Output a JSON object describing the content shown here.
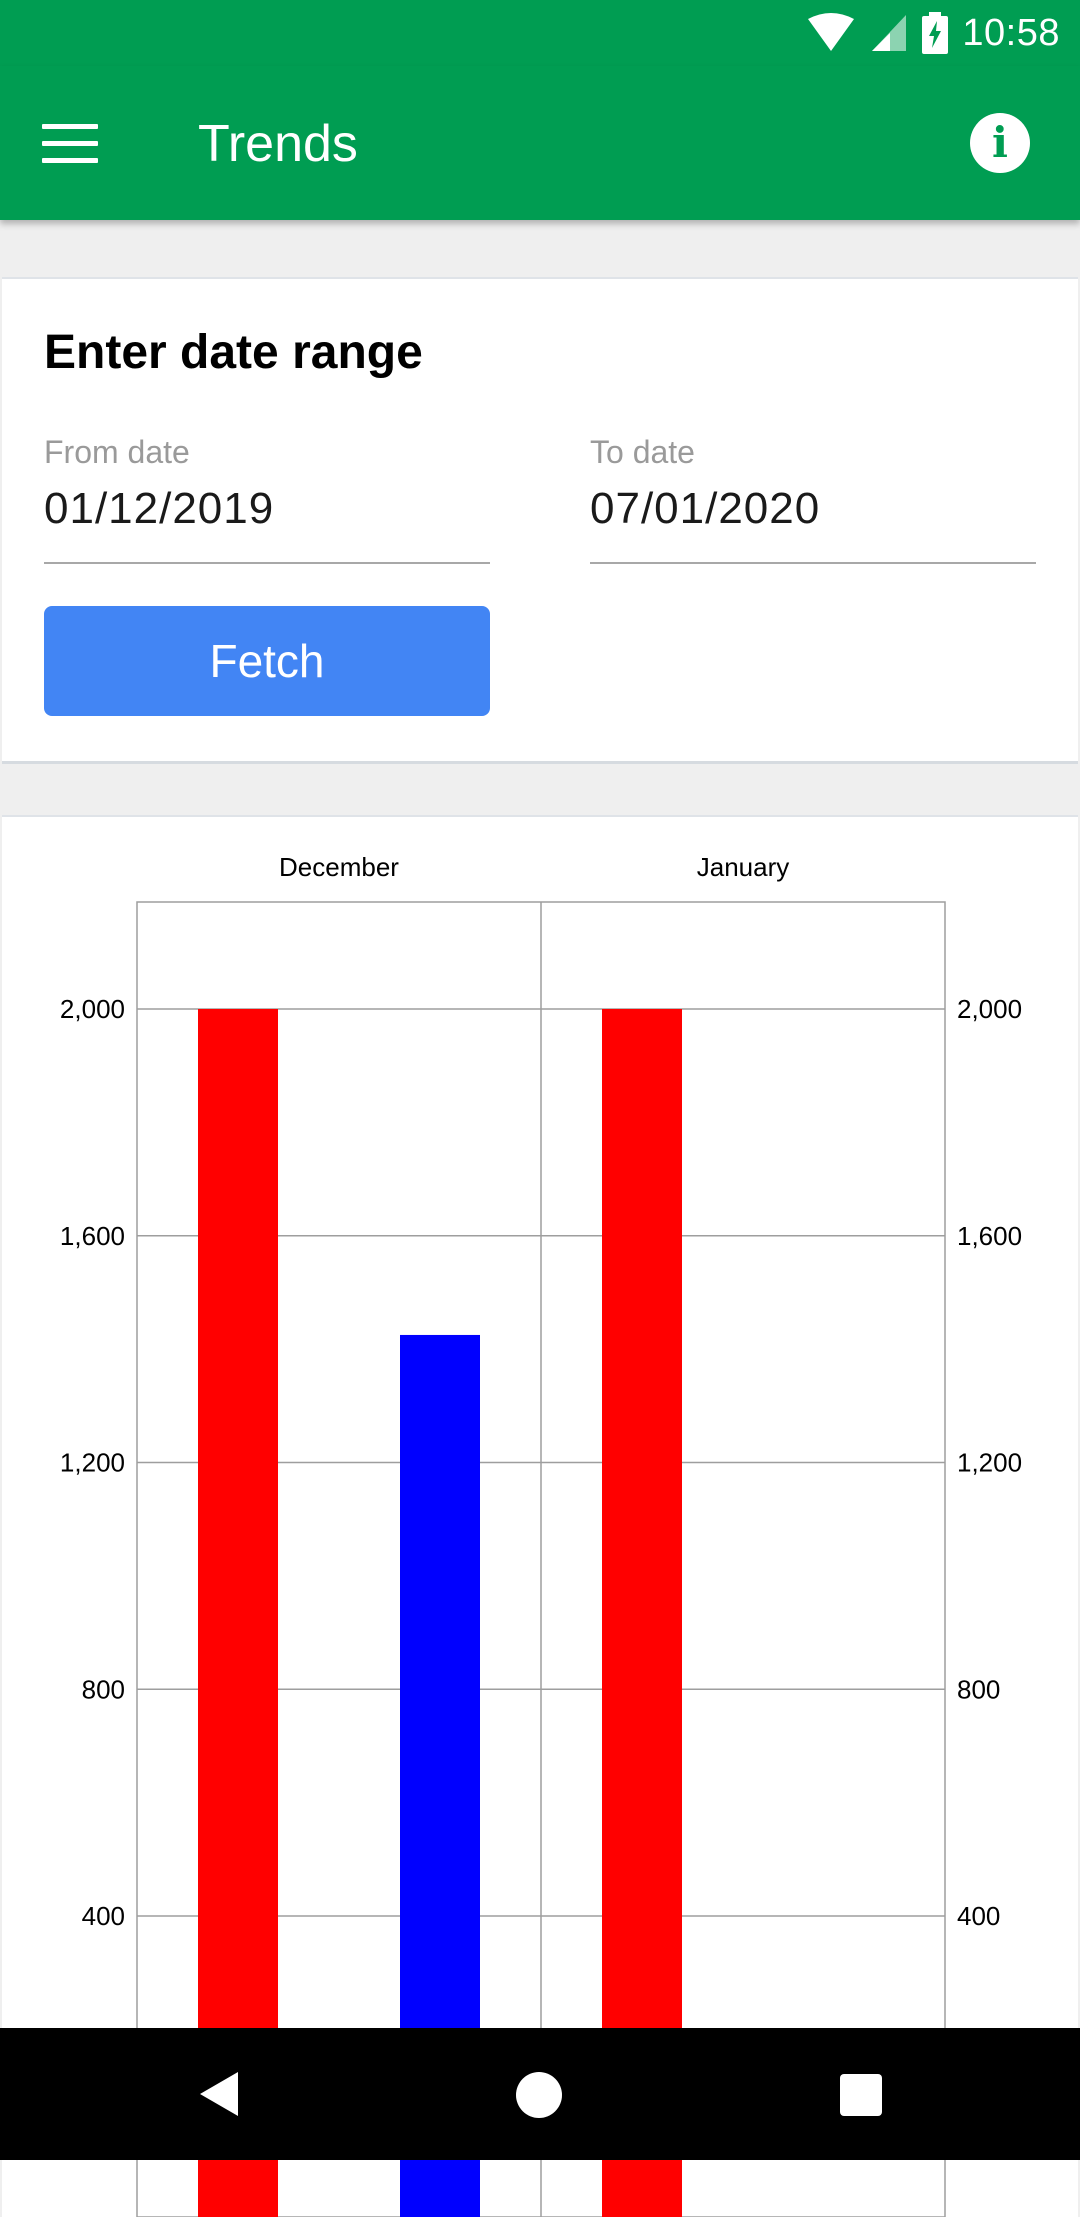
{
  "status_bar": {
    "time": "10:58",
    "icons": [
      "wifi-icon",
      "cell-signal-icon",
      "battery-charging-icon"
    ]
  },
  "app_bar": {
    "title": "Trends",
    "menu_icon": "hamburger-menu-icon",
    "info_icon": "info-icon",
    "color": "#009d52"
  },
  "date_card": {
    "title": "Enter date range",
    "from_label": "From date",
    "from_value": "01/12/2019",
    "to_label": "To date",
    "to_value": "07/01/2020",
    "fetch_label": "Fetch",
    "button_color": "#4285f4"
  },
  "chart_data": {
    "type": "bar",
    "categories": [
      "December",
      "January"
    ],
    "series": [
      {
        "color": "#ff0000",
        "values": [
          2000,
          2000
        ]
      },
      {
        "color": "#0000ff",
        "values": [
          1425,
          null
        ]
      }
    ],
    "ytick_labels": [
      "2,000",
      "1,600",
      "1,200",
      "800",
      "400"
    ],
    "ytick_values": [
      2000,
      1600,
      1200,
      800,
      400
    ],
    "y_axes": [
      "left",
      "right"
    ],
    "ylim": [
      0,
      2180
    ],
    "grid": true
  },
  "nav_bar": {
    "icons": [
      "back-icon",
      "home-icon",
      "recents-icon"
    ]
  }
}
